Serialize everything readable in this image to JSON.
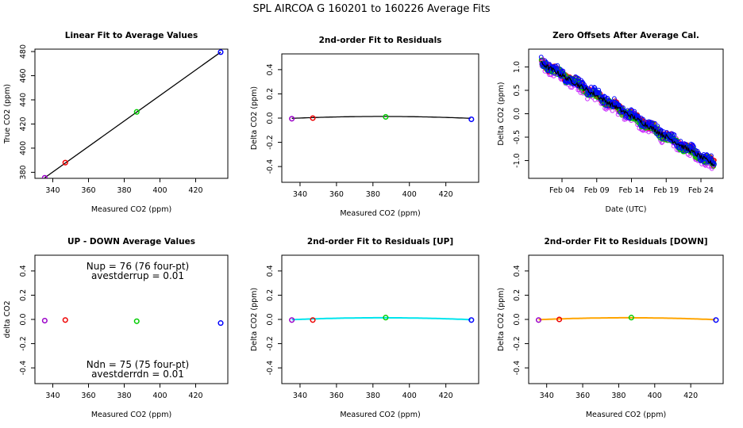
{
  "suptitle": "SPL   AIRCOA G   160201 to 160226   Average Fits",
  "colors": {
    "purple": "#9a00c8",
    "red": "#ee0000",
    "green": "#00cc00",
    "blue": "#0000ff",
    "black": "#000000",
    "cyan": "#00e5ee",
    "orange": "#ffa500",
    "magenta": "#cc33ff"
  },
  "chart_data": [
    {
      "id": "p1",
      "type": "scatter",
      "title": "Linear Fit to Average Values",
      "xlabel": "Measured CO2 (ppm)",
      "ylabel": "True CO2 (ppm)",
      "xlim": [
        330,
        438
      ],
      "ylim": [
        375,
        482
      ],
      "xticks": [
        340,
        360,
        380,
        400,
        420
      ],
      "yticks": [
        380,
        400,
        420,
        440,
        460,
        480
      ],
      "points": [
        {
          "x": 335.5,
          "y": 375.5,
          "color": "purple"
        },
        {
          "x": 347.0,
          "y": 388.0,
          "color": "red"
        },
        {
          "x": 387.0,
          "y": 430.0,
          "color": "green"
        },
        {
          "x": 434.0,
          "y": 479.5,
          "color": "blue"
        }
      ],
      "fit_line": [
        [
          335.5,
          375.5
        ],
        [
          434.0,
          479.5
        ]
      ]
    },
    {
      "id": "p2",
      "type": "scatter",
      "title": "2nd-order Fit to Residuals",
      "xlabel": "Measured CO2 (ppm)",
      "ylabel": "Delta CO2 (ppm)",
      "xlim": [
        330,
        438
      ],
      "ylim": [
        -0.53,
        0.53
      ],
      "xticks": [
        340,
        360,
        380,
        400,
        420
      ],
      "yticks": [
        -0.4,
        -0.2,
        0.0,
        0.2,
        0.4
      ],
      "ytick_labels": [
        "-0.4",
        "-0.2",
        "0.0",
        "0.2",
        "0.4"
      ],
      "points": [
        {
          "x": 335.5,
          "y": -0.005,
          "color": "purple"
        },
        {
          "x": 347.0,
          "y": 0.0,
          "color": "red"
        },
        {
          "x": 387.0,
          "y": 0.01,
          "color": "green"
        },
        {
          "x": 434.0,
          "y": -0.01,
          "color": "blue"
        }
      ],
      "fit_curve": {
        "a": -6.5e-06,
        "b": 0.005,
        "c": -0.948,
        "color": "black"
      }
    },
    {
      "id": "p3",
      "type": "scatter",
      "title": "Zero Offsets After Average Cal.",
      "xlabel": "Date (UTC)",
      "ylabel": "Delta CO2 (ppm)",
      "xlim": [
        -0.8,
        27.2
      ],
      "ylim": [
        -1.38,
        1.38
      ],
      "xticks": [
        4,
        9,
        14,
        19,
        24
      ],
      "xtick_labels": [
        "Feb 04",
        "Feb 09",
        "Feb 14",
        "Feb 19",
        "Feb 24"
      ],
      "yticks": [
        -1.0,
        -0.5,
        0.0,
        0.5,
        1.0
      ],
      "ytick_labels": [
        "-1.0",
        "-0.5",
        "0.0",
        "0.5",
        "1.0"
      ],
      "trend": {
        "x0": 1.0,
        "y0": 1.08,
        "x1": 26.0,
        "y1": -1.1
      },
      "series": [
        {
          "name": "purple",
          "color": "magenta",
          "offset": -0.03,
          "spread": 0.12
        },
        {
          "name": "red",
          "color": "red",
          "offset": 0.02,
          "spread": 0.08
        },
        {
          "name": "green",
          "color": "green",
          "offset": 0.0,
          "spread": 0.08
        },
        {
          "name": "blue",
          "color": "blue",
          "offset": 0.03,
          "spread": 0.1
        }
      ]
    },
    {
      "id": "p4",
      "type": "scatter",
      "title": "UP - DOWN Average Values",
      "xlabel": "Measured CO2 (ppm)",
      "ylabel": "delta CO2",
      "xlim": [
        330,
        438
      ],
      "ylim": [
        -0.53,
        0.53
      ],
      "xticks": [
        340,
        360,
        380,
        400,
        420
      ],
      "yticks": [
        -0.4,
        -0.2,
        0.0,
        0.2,
        0.4
      ],
      "ytick_labels": [
        "-0.4",
        "-0.2",
        "0.0",
        "0.2",
        "0.4"
      ],
      "points": [
        {
          "x": 335.5,
          "y": -0.01,
          "color": "purple"
        },
        {
          "x": 347.0,
          "y": -0.005,
          "color": "red"
        },
        {
          "x": 387.0,
          "y": -0.015,
          "color": "green"
        },
        {
          "x": 434.0,
          "y": -0.03,
          "color": "blue"
        }
      ],
      "annotations": {
        "nup": "Nup = 76 (76 four-pt)",
        "avestderrup": "avestderrup =  0.01",
        "ndn": "Ndn = 75 (75 four-pt)",
        "avestderrdn": "avestderrdn =  0.01"
      }
    },
    {
      "id": "p5",
      "type": "scatter",
      "title": "2nd-order Fit to Residuals [UP]",
      "xlabel": "Measured CO2 (ppm)",
      "ylabel": "Delta CO2 (ppm)",
      "xlim": [
        330,
        438
      ],
      "ylim": [
        -0.53,
        0.53
      ],
      "xticks": [
        340,
        360,
        380,
        400,
        420
      ],
      "yticks": [
        -0.4,
        -0.2,
        0.0,
        0.2,
        0.4
      ],
      "ytick_labels": [
        "-0.4",
        "-0.2",
        "0.0",
        "0.2",
        "0.4"
      ],
      "points": [
        {
          "x": 335.5,
          "y": -0.005,
          "color": "purple"
        },
        {
          "x": 347.0,
          "y": -0.005,
          "color": "red"
        },
        {
          "x": 387.0,
          "y": 0.015,
          "color": "green"
        },
        {
          "x": 434.0,
          "y": -0.005,
          "color": "blue"
        }
      ],
      "fit_curve": {
        "a": -6.5e-06,
        "b": 0.005,
        "c": -0.948,
        "color": "cyan"
      }
    },
    {
      "id": "p6",
      "type": "scatter",
      "title": "2nd-order Fit to Residuals [DOWN]",
      "xlabel": "Measured CO2 (ppm)",
      "ylabel": "Delta CO2 (ppm)",
      "xlim": [
        330,
        438
      ],
      "ylim": [
        -0.53,
        0.53
      ],
      "xticks": [
        340,
        360,
        380,
        400,
        420
      ],
      "yticks": [
        -0.4,
        -0.2,
        0.0,
        0.2,
        0.4
      ],
      "ytick_labels": [
        "-0.4",
        "-0.2",
        "0.0",
        "0.2",
        "0.4"
      ],
      "points": [
        {
          "x": 335.5,
          "y": -0.005,
          "color": "purple"
        },
        {
          "x": 347.0,
          "y": 0.0,
          "color": "red"
        },
        {
          "x": 387.0,
          "y": 0.015,
          "color": "green"
        },
        {
          "x": 434.0,
          "y": -0.005,
          "color": "blue"
        }
      ],
      "fit_curve": {
        "a": -6.5e-06,
        "b": 0.005,
        "c": -0.948,
        "color": "orange"
      }
    }
  ]
}
